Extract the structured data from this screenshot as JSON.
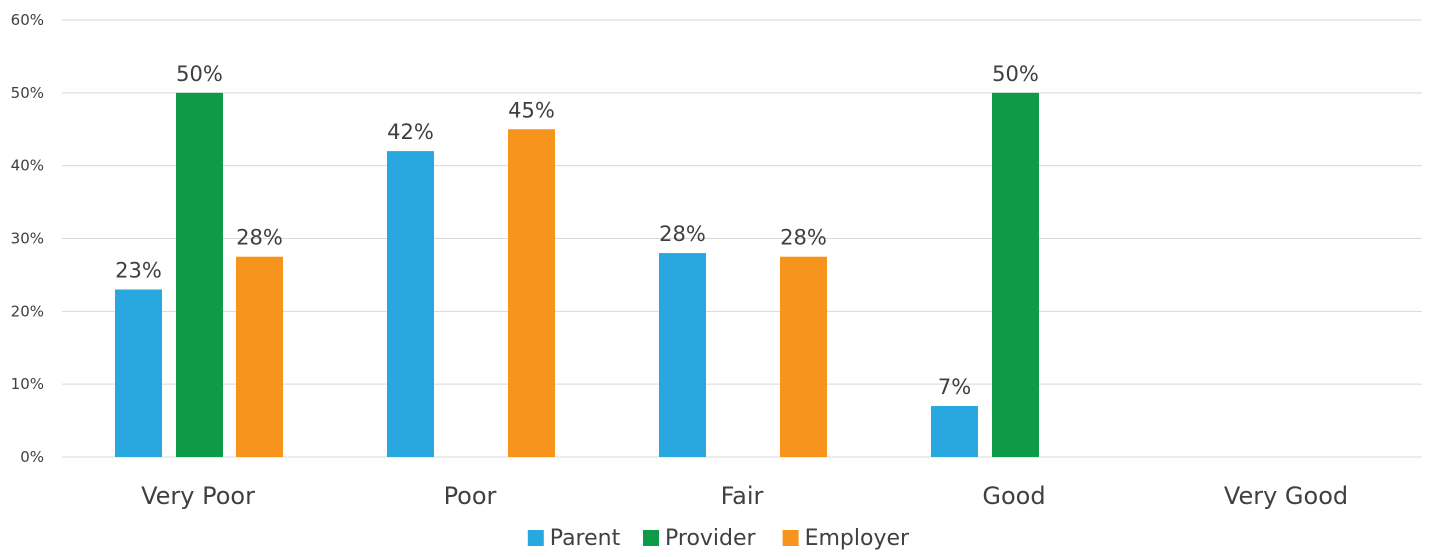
{
  "chart_data": {
    "type": "bar",
    "title": "",
    "xlabel": "",
    "ylabel": "",
    "categories": [
      "Very Poor",
      "Poor",
      "Fair",
      "Good",
      "Very Good"
    ],
    "ylim": [
      0,
      60
    ],
    "yticks": [
      0,
      10,
      20,
      30,
      40,
      50,
      60
    ],
    "ytick_labels": [
      "0%",
      "10%",
      "20%",
      "30%",
      "40%",
      "50%",
      "60%"
    ],
    "grid": true,
    "legend_position": "bottom",
    "series": [
      {
        "name": "Parent",
        "color": "#29A8E0",
        "values": [
          23,
          42,
          28,
          7,
          null
        ],
        "labels": [
          "23%",
          "42%",
          "28%",
          "7%",
          ""
        ]
      },
      {
        "name": "Provider",
        "color": "#0E9B48",
        "values": [
          50,
          null,
          null,
          50,
          null
        ],
        "labels": [
          "50%",
          "",
          "",
          "50%",
          ""
        ]
      },
      {
        "name": "Employer",
        "color": "#F7941D",
        "values": [
          27.5,
          45,
          27.5,
          null,
          null
        ],
        "labels": [
          "28%",
          "45%",
          "28%",
          "",
          ""
        ]
      }
    ]
  }
}
